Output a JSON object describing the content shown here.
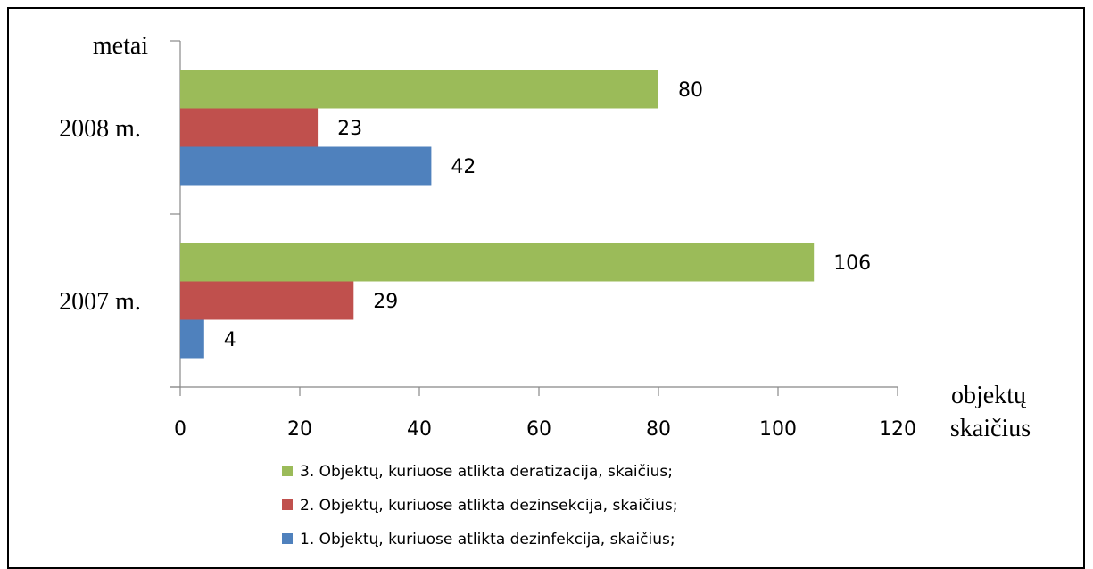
{
  "chart_data": {
    "type": "bar",
    "orientation": "horizontal",
    "title": "",
    "ylabel": "metai",
    "xlabel": [
      "objektų",
      "skaičius"
    ],
    "categories": [
      "2008 m.",
      "2007 m."
    ],
    "xlim": [
      0,
      120
    ],
    "xticks": [
      0,
      20,
      40,
      60,
      80,
      100,
      120
    ],
    "grid": false,
    "legend_position": "bottom",
    "series": [
      {
        "name": "3. Objektų, kuriuose atlikta deratizacija, skaičius;",
        "color": "#9BBB59",
        "values": [
          80,
          106
        ]
      },
      {
        "name": "2. Objektų, kuriuose atlikta dezinsekcija, skaičius;",
        "color": "#C0504D",
        "values": [
          23,
          29
        ]
      },
      {
        "name": "1. Objektų, kuriuose atlikta dezinfekcija, skaičius;",
        "color": "#4F81BD",
        "values": [
          42,
          4
        ]
      }
    ]
  }
}
